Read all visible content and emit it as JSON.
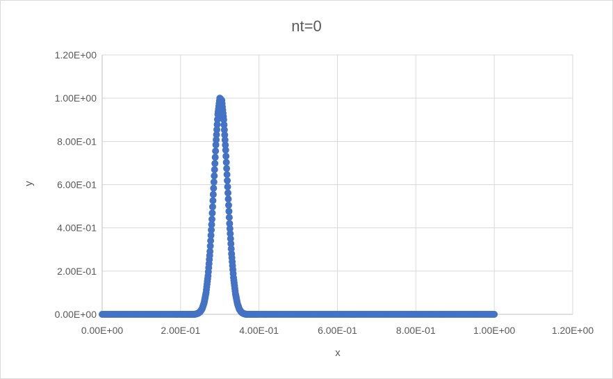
{
  "chart_data": {
    "type": "scatter",
    "title": "nt=0",
    "xlabel": "x",
    "ylabel": "y",
    "xlim": [
      0,
      1.2
    ],
    "ylim": [
      0,
      1.2
    ],
    "xticks": [
      0,
      0.2,
      0.4,
      0.6,
      0.8,
      1.0,
      1.2
    ],
    "yticks": [
      0,
      0.2,
      0.4,
      0.6,
      0.8,
      1.0,
      1.2
    ],
    "xtick_labels": [
      "0.00E+00",
      "2.00E-01",
      "4.00E-01",
      "6.00E-01",
      "8.00E-01",
      "1.00E+00",
      "1.20E+00"
    ],
    "ytick_labels": [
      "0.00E+00",
      "2.00E-01",
      "4.00E-01",
      "6.00E-01",
      "8.00E-01",
      "1.00E+00",
      "1.20E+00"
    ],
    "grid": true,
    "legend": "none",
    "series": [
      {
        "color": "#4472c4",
        "x": [
          0,
          0.02,
          0.04,
          0.06,
          0.08,
          0.1,
          0.12,
          0.14,
          0.16,
          0.18,
          0.2,
          0.21,
          0.22,
          0.225,
          0.23,
          0.235,
          0.24,
          0.245,
          0.25,
          0.255,
          0.26,
          0.265,
          0.27,
          0.275,
          0.28,
          0.285,
          0.29,
          0.295,
          0.3,
          0.305,
          0.31,
          0.315,
          0.32,
          0.325,
          0.33,
          0.335,
          0.34,
          0.345,
          0.35,
          0.355,
          0.36,
          0.365,
          0.37,
          0.375,
          0.38,
          0.39,
          0.4,
          0.42,
          0.44,
          0.46,
          0.48,
          0.5,
          0.52,
          0.54,
          0.56,
          0.58,
          0.6,
          0.62,
          0.64,
          0.66,
          0.68,
          0.7,
          0.72,
          0.74,
          0.76,
          0.78,
          0.8,
          0.82,
          0.84,
          0.86,
          0.88,
          0.9,
          0.92,
          0.94,
          0.96,
          0.98,
          1.0
        ],
        "y": [
          0,
          0,
          0,
          0,
          0,
          0,
          0,
          0,
          0,
          0,
          0,
          0,
          0,
          0,
          0,
          0,
          0.002,
          0.005,
          0.012,
          0.026,
          0.053,
          0.101,
          0.178,
          0.291,
          0.44,
          0.612,
          0.784,
          0.925,
          1.0,
          0.99,
          0.9,
          0.76,
          0.59,
          0.42,
          0.28,
          0.17,
          0.095,
          0.049,
          0.023,
          0.01,
          0.004,
          0.001,
          0,
          0,
          0,
          0,
          0,
          0,
          0,
          0,
          0,
          0,
          0,
          0,
          0,
          0,
          0,
          0,
          0,
          0,
          0,
          0,
          0,
          0,
          0,
          0,
          0,
          0,
          0,
          0,
          0,
          0,
          0,
          0,
          0,
          0,
          0
        ]
      }
    ]
  }
}
